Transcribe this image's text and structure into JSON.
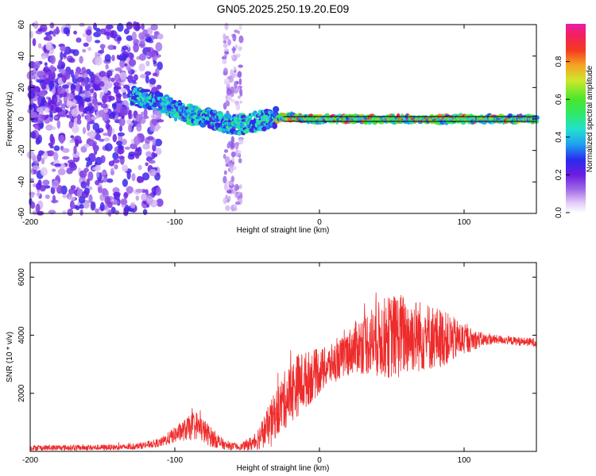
{
  "title": "GN05.2025.250.19.20.E09",
  "chart_data": [
    {
      "type": "heatmap",
      "title": "GN05.2025.250.19.20.E09",
      "xlabel": "Height of straight line (km)",
      "ylabel": "Frequency (Hz)",
      "xlim": [
        -200,
        150
      ],
      "ylim": [
        -60,
        60
      ],
      "x_ticks": [
        -200,
        -100,
        0,
        100
      ],
      "y_ticks": [
        -60,
        -40,
        -20,
        0,
        20,
        40,
        60
      ],
      "colorbar": {
        "label": "Normalized spectral amplitude",
        "range": [
          0,
          1
        ],
        "ticks": [
          0.0,
          0.2,
          0.4,
          0.6,
          0.8
        ],
        "tick_labels": [
          "0.0",
          "0.2",
          "0.4",
          "0.6",
          "0.8"
        ]
      },
      "trend": {
        "x": [
          -130,
          -120,
          -110,
          -100,
          -90,
          -80,
          -70,
          -60,
          -50,
          -40,
          -30,
          -20,
          0,
          50,
          100,
          150
        ],
        "center_frequency": [
          15,
          13,
          10,
          6,
          3,
          1,
          -1,
          -4,
          -3,
          -1,
          1,
          1,
          0,
          0,
          0,
          0
        ]
      },
      "reference_line_frequency": 0
    },
    {
      "type": "line",
      "xlabel": "Height of straight line (km)",
      "ylabel": "SNR (10 * v/v)",
      "xlim": [
        -200,
        150
      ],
      "ylim": [
        0,
        6500
      ],
      "x_ticks": [
        -200,
        -100,
        0,
        100
      ],
      "y_ticks": [
        2000,
        4000,
        6000
      ],
      "series": [
        {
          "name": "SNR",
          "color": "#ee2b2b",
          "x": [
            -200,
            -160,
            -130,
            -110,
            -95,
            -85,
            -75,
            -65,
            -55,
            -45,
            -35,
            -25,
            -15,
            -5,
            5,
            15,
            25,
            35,
            45,
            55,
            65,
            75,
            85,
            95,
            105,
            115,
            125,
            135,
            150
          ],
          "mean": [
            120,
            130,
            150,
            300,
            700,
            900,
            500,
            200,
            150,
            300,
            900,
            1700,
            2300,
            2600,
            2900,
            3200,
            3600,
            3800,
            3900,
            4000,
            4000,
            3950,
            3900,
            3850,
            3850,
            3850,
            3850,
            3800,
            3750
          ],
          "spread": [
            100,
            100,
            100,
            150,
            350,
            500,
            350,
            150,
            100,
            300,
            700,
            1000,
            1100,
            900,
            700,
            700,
            900,
            1200,
            1400,
            1500,
            1300,
            1200,
            1000,
            700,
            400,
            200,
            150,
            150,
            150
          ]
        }
      ]
    }
  ]
}
